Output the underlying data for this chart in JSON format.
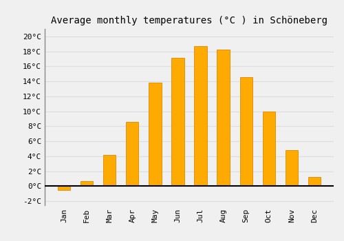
{
  "title": "Average monthly temperatures (°C ) in Schöneberg",
  "months": [
    "Jan",
    "Feb",
    "Mar",
    "Apr",
    "May",
    "Jun",
    "Jul",
    "Aug",
    "Sep",
    "Oct",
    "Nov",
    "Dec"
  ],
  "values": [
    -0.5,
    0.7,
    4.2,
    8.6,
    13.8,
    17.1,
    18.7,
    18.2,
    14.6,
    10.0,
    4.8,
    1.2
  ],
  "bar_color": "#FFAA00",
  "bar_edge_color": "#DD8800",
  "background_color": "#F0F0F0",
  "grid_color": "#DDDDDD",
  "ylim": [
    -2.5,
    21
  ],
  "yticks": [
    -2,
    0,
    2,
    4,
    6,
    8,
    10,
    12,
    14,
    16,
    18,
    20
  ],
  "title_fontsize": 10,
  "tick_fontsize": 8,
  "zero_line_color": "#000000",
  "spine_color": "#888888"
}
